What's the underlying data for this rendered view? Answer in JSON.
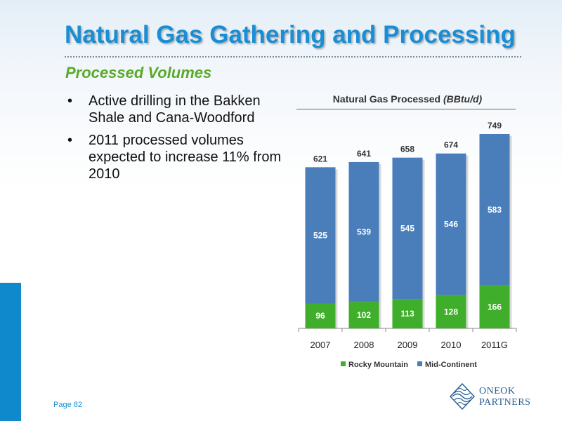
{
  "slide": {
    "title": "Natural Gas Gathering and Processing",
    "subtitle": "Processed Volumes",
    "bullets": [
      "Active drilling in the Bakken Shale and Cana-Woodford",
      "2011 processed volumes expected to increase 11% from 2010"
    ],
    "bullet_symbol": "•",
    "page_number": "Page 82",
    "logo": {
      "line1": "ONEOK",
      "line2": "PARTNERS"
    }
  },
  "colors": {
    "accent_blue": "#1a8ed4",
    "subtitle_green": "#5aaa2a",
    "mid_continent": "#4a7ebb",
    "rocky_mountain": "#3fae2a",
    "logo_blue": "#2a5f93"
  },
  "chart_data": {
    "type": "bar",
    "stacked": true,
    "title": "Natural Gas Processed",
    "title_unit": "(BBtu/d)",
    "categories": [
      "2007",
      "2008",
      "2009",
      "2010",
      "2011G"
    ],
    "series": [
      {
        "name": "Rocky Mountain",
        "color": "#3fae2a",
        "values": [
          96,
          102,
          113,
          128,
          166
        ]
      },
      {
        "name": "Mid-Continent",
        "color": "#4a7ebb",
        "values": [
          525,
          539,
          545,
          546,
          583
        ]
      }
    ],
    "totals": [
      621,
      641,
      658,
      674,
      749
    ],
    "ylim": [
      0,
      800
    ],
    "grid": false,
    "legend": "bottom"
  }
}
